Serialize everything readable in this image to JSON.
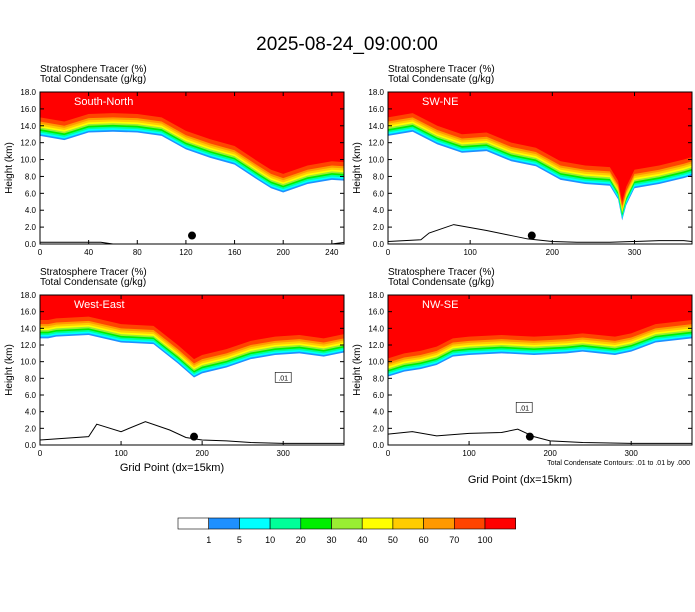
{
  "title": "2025-08-24_09:00:00",
  "panel_header_lines": [
    "Stratosphere Tracer   (%)",
    "Total Condensate   (g/kg)"
  ],
  "ylabel": "Height (km)",
  "xlabel": "Grid Point (dx=15km)",
  "contour_note": "Total Condensate Contours: .01 to .01 by .000",
  "contour_label": ".01",
  "yticks": [
    "0.0",
    "2.0",
    "4.0",
    "6.0",
    "8.0",
    "10.0",
    "12.0",
    "14.0",
    "16.0",
    "18.0"
  ],
  "colorbar": {
    "labels": [
      "1",
      "5",
      "10",
      "20",
      "30",
      "40",
      "50",
      "60",
      "70",
      "100"
    ],
    "colors": [
      "#ffffff",
      "#1e90ff",
      "#00ffff",
      "#00ff99",
      "#00ee00",
      "#99ee33",
      "#ffff00",
      "#ffcc00",
      "#ff9900",
      "#ff4400",
      "#ff0000"
    ]
  },
  "chart_data": [
    {
      "type": "heatmap",
      "name": "South-North",
      "xlim": [
        0,
        250
      ],
      "ylim": [
        0,
        18
      ],
      "xticks": [
        "0",
        "40",
        "80",
        "120",
        "160",
        "200",
        "240"
      ],
      "tropopause_x": [
        0,
        20,
        40,
        60,
        80,
        100,
        120,
        140,
        160,
        180,
        190,
        200,
        220,
        240,
        250
      ],
      "tropopause_y": [
        15.0,
        14.5,
        15.4,
        15.5,
        15.4,
        15.0,
        13.4,
        12.4,
        11.6,
        9.7,
        8.8,
        8.3,
        9.3,
        9.8,
        9.7
      ],
      "terrain_x": [
        0,
        50,
        60,
        240,
        250
      ],
      "terrain_y": [
        0.2,
        0.2,
        0.0,
        0.0,
        0.2
      ],
      "marker": [
        125,
        1.0
      ]
    },
    {
      "type": "heatmap",
      "name": "SW-NE",
      "xlim": [
        0,
        370
      ],
      "ylim": [
        0,
        18
      ],
      "xticks": [
        "0",
        "100",
        "200",
        "300"
      ],
      "tropopause_x": [
        0,
        30,
        60,
        90,
        120,
        150,
        180,
        210,
        240,
        270,
        280,
        285,
        290,
        300,
        330,
        360,
        370
      ],
      "tropopause_y": [
        15.0,
        15.5,
        14.0,
        13.0,
        13.2,
        12.0,
        11.4,
        9.8,
        9.3,
        9.1,
        7.5,
        5.0,
        6.8,
        8.8,
        9.3,
        10.0,
        10.3
      ],
      "terrain_x": [
        0,
        40,
        50,
        80,
        120,
        150,
        170,
        200,
        230,
        270,
        330,
        360,
        370
      ],
      "terrain_y": [
        0.3,
        0.5,
        1.3,
        2.3,
        1.6,
        1.0,
        0.6,
        0.3,
        0.2,
        0.2,
        0.4,
        0.4,
        0.3
      ],
      "marker": [
        175,
        1.0
      ]
    },
    {
      "type": "heatmap",
      "name": "West-East",
      "xlim": [
        0,
        375
      ],
      "ylim": [
        0,
        18
      ],
      "xticks": [
        "0",
        "100",
        "200",
        "300"
      ],
      "tropopause_x": [
        0,
        10,
        20,
        60,
        100,
        140,
        170,
        190,
        200,
        230,
        260,
        290,
        320,
        350,
        375
      ],
      "tropopause_y": [
        15.0,
        15.0,
        15.2,
        15.4,
        14.5,
        14.3,
        12.0,
        10.3,
        10.8,
        11.5,
        12.5,
        13.0,
        13.2,
        12.8,
        13.3
      ],
      "terrain_x": [
        0,
        60,
        70,
        100,
        130,
        160,
        180,
        200,
        230,
        260,
        300,
        340,
        375
      ],
      "terrain_y": [
        0.6,
        1.0,
        2.5,
        1.6,
        2.8,
        1.8,
        0.9,
        0.6,
        0.5,
        0.3,
        0.2,
        0.2,
        0.2
      ],
      "marker": [
        190,
        1.0
      ]
    },
    {
      "type": "heatmap",
      "name": "NW-SE",
      "xlim": [
        0,
        375
      ],
      "ylim": [
        0,
        18
      ],
      "xticks": [
        "0",
        "100",
        "200",
        "300"
      ],
      "tropopause_x": [
        0,
        20,
        40,
        60,
        80,
        100,
        140,
        180,
        220,
        240,
        260,
        280,
        300,
        330,
        375
      ],
      "tropopause_y": [
        10.4,
        11.0,
        11.3,
        11.8,
        12.8,
        13.0,
        13.2,
        13.0,
        13.2,
        13.4,
        13.2,
        13.0,
        13.4,
        14.5,
        15.0
      ],
      "terrain_x": [
        0,
        30,
        60,
        100,
        140,
        160,
        180,
        200,
        240,
        300,
        375
      ],
      "terrain_y": [
        1.3,
        1.6,
        1.1,
        1.4,
        1.5,
        1.9,
        1.0,
        0.5,
        0.3,
        0.2,
        0.2
      ],
      "marker": [
        175,
        1.0
      ]
    }
  ]
}
